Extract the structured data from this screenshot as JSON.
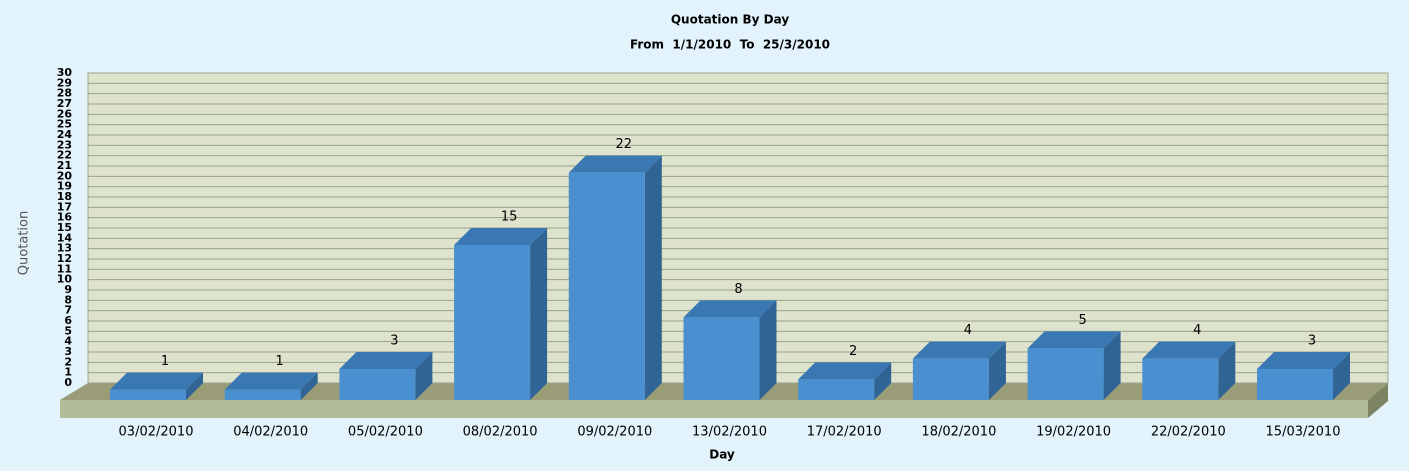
{
  "chart_data": {
    "type": "bar3d",
    "title": "Quotation By Day",
    "subtitle": "From  1/1/2010  To  25/3/2010",
    "x_label": "Day",
    "y_label": "Quotation",
    "categories": [
      "03/02/2010",
      "04/02/2010",
      "05/02/2010",
      "08/02/2010",
      "09/02/2010",
      "13/02/2010",
      "17/02/2010",
      "18/02/2010",
      "19/02/2010",
      "22/02/2010",
      "15/03/2010"
    ],
    "values": [
      1,
      1,
      3,
      15,
      22,
      8,
      2,
      4,
      5,
      4,
      3
    ],
    "color": "#4a90d0",
    "ylim": [
      0,
      30
    ],
    "yticks": [
      0,
      1,
      2,
      3,
      4,
      5,
      6,
      7,
      8,
      9,
      10,
      11,
      12,
      13,
      14,
      15,
      16,
      17,
      18,
      19,
      20,
      21,
      22,
      23,
      24,
      25,
      26,
      27,
      28,
      29,
      30
    ],
    "grid": true
  }
}
